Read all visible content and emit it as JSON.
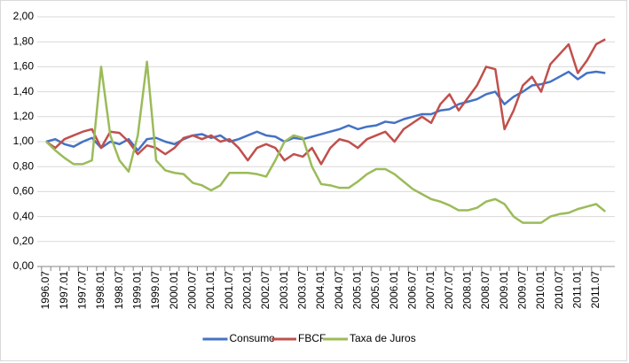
{
  "chart_data": {
    "type": "line",
    "categories": [
      "1996.07",
      null,
      "1997.01",
      null,
      "1997.07",
      null,
      "1998.01",
      null,
      "1998.07",
      null,
      "1999.01",
      null,
      "1999.07",
      null,
      "2000.01",
      null,
      "2000.07",
      null,
      "2001.01",
      null,
      "2001.07",
      null,
      "2002.01",
      null,
      "2002.07",
      null,
      "2003.01",
      null,
      "2003.07",
      null,
      "2004.01",
      null,
      "2004.07",
      null,
      "2005.01",
      null,
      "2005.07",
      null,
      "2006.01",
      null,
      "2006.07",
      null,
      "2007.01",
      null,
      "2007.07",
      null,
      "2008.01",
      null,
      "2008.07",
      null,
      "2009.01",
      null,
      "2009.07",
      null,
      "2010.01",
      null,
      "2010.07",
      null,
      "2011.01",
      null,
      "2011.07",
      null
    ],
    "series": [
      {
        "name": "Consumo",
        "color": "#4472c4",
        "values": [
          1.0,
          1.02,
          0.98,
          0.96,
          1.0,
          1.03,
          0.95,
          1.0,
          0.98,
          1.02,
          0.93,
          1.02,
          1.03,
          1.0,
          0.98,
          1.02,
          1.05,
          1.06,
          1.03,
          1.05,
          1.0,
          1.02,
          1.05,
          1.08,
          1.05,
          1.04,
          1.0,
          1.03,
          1.02,
          1.04,
          1.06,
          1.08,
          1.1,
          1.13,
          1.1,
          1.12,
          1.13,
          1.16,
          1.15,
          1.18,
          1.2,
          1.22,
          1.22,
          1.25,
          1.26,
          1.3,
          1.32,
          1.34,
          1.38,
          1.4,
          1.3,
          1.36,
          1.4,
          1.45,
          1.46,
          1.48,
          1.52,
          1.56,
          1.5,
          1.55,
          1.56,
          1.55
        ]
      },
      {
        "name": "FBCF",
        "color": "#c0504d",
        "values": [
          1.0,
          0.95,
          1.02,
          1.05,
          1.08,
          1.1,
          0.95,
          1.08,
          1.07,
          1.0,
          0.9,
          0.97,
          0.95,
          0.9,
          0.95,
          1.03,
          1.05,
          1.02,
          1.05,
          1.0,
          1.02,
          0.95,
          0.85,
          0.95,
          0.98,
          0.95,
          0.85,
          0.9,
          0.88,
          0.95,
          0.82,
          0.95,
          1.02,
          1.0,
          0.95,
          1.02,
          1.05,
          1.08,
          1.0,
          1.1,
          1.15,
          1.2,
          1.15,
          1.3,
          1.38,
          1.25,
          1.35,
          1.45,
          1.6,
          1.58,
          1.1,
          1.25,
          1.45,
          1.52,
          1.4,
          1.62,
          1.7,
          1.78,
          1.55,
          1.65,
          1.78,
          1.82
        ]
      },
      {
        "name": "Taxa de Juros",
        "color": "#9bbb59",
        "values": [
          1.0,
          0.93,
          0.87,
          0.82,
          0.82,
          0.85,
          1.6,
          1.05,
          0.85,
          0.76,
          1.05,
          1.64,
          0.85,
          0.77,
          0.75,
          0.74,
          0.67,
          0.65,
          0.61,
          0.65,
          0.75,
          0.75,
          0.75,
          0.74,
          0.72,
          0.85,
          1.0,
          1.05,
          1.03,
          0.8,
          0.66,
          0.65,
          0.63,
          0.63,
          0.68,
          0.74,
          0.78,
          0.78,
          0.74,
          0.68,
          0.62,
          0.58,
          0.54,
          0.52,
          0.49,
          0.45,
          0.45,
          0.47,
          0.52,
          0.54,
          0.5,
          0.4,
          0.35,
          0.35,
          0.35,
          0.4,
          0.42,
          0.43,
          0.46,
          0.48,
          0.5,
          0.44
        ]
      }
    ],
    "ylim": [
      0,
      2
    ],
    "yticks": [
      {
        "value": 0,
        "label": "0,00"
      },
      {
        "value": 0.2,
        "label": "0,20"
      },
      {
        "value": 0.4,
        "label": "0,40"
      },
      {
        "value": 0.6,
        "label": "0,60"
      },
      {
        "value": 0.8,
        "label": "0,80"
      },
      {
        "value": 1,
        "label": "1,00"
      },
      {
        "value": 1.2,
        "label": "1,20"
      },
      {
        "value": 1.4,
        "label": "1,40"
      },
      {
        "value": 1.6,
        "label": "1,60"
      },
      {
        "value": 1.8,
        "label": "1,80"
      },
      {
        "value": 2,
        "label": "2,00"
      }
    ],
    "grid": true,
    "legend": "bottom"
  }
}
